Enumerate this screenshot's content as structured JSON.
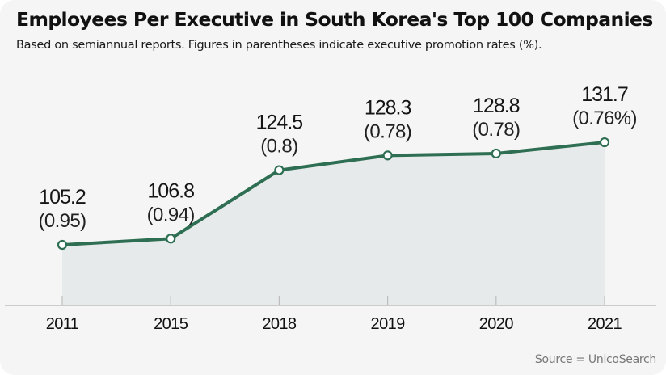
{
  "header": {
    "title": "Employees Per Executive in South Korea's Top 100 Companies",
    "subtitle": "Based on semiannual reports. Figures in parentheses indicate executive promotion rates (%)."
  },
  "footer": {
    "source": "Source = UnicoSearch"
  },
  "colors": {
    "line": "#2e6e52",
    "area": "#e6eaea",
    "background": "#f5f5f5",
    "axis": "#bdbdbd"
  },
  "chart_data": {
    "type": "line",
    "title": "Employees Per Executive in South Korea's Top 100 Companies",
    "subtitle": "Based on semiannual reports. Figures in parentheses indicate executive promotion rates (%).",
    "xlabel": "",
    "ylabel": "",
    "grid": false,
    "legend": "none",
    "categories": [
      "2011",
      "2015",
      "2018",
      "2019",
      "2020",
      "2021"
    ],
    "series": [
      {
        "name": "Employees per executive",
        "values": [
          105.2,
          106.8,
          124.5,
          128.3,
          128.8,
          131.7
        ],
        "labels": [
          "105.2",
          "106.8",
          "124.5",
          "128.3",
          "128.8",
          "131.7"
        ]
      },
      {
        "name": "Executive promotion rate (%)",
        "values": [
          0.95,
          0.94,
          0.8,
          0.78,
          0.78,
          0.76
        ],
        "labels": [
          "(0.95)",
          "(0.94)",
          "(0.8)",
          "(0.78)",
          "(0.78)",
          "(0.76%)"
        ]
      }
    ],
    "area_fill": true,
    "source": "Source = UnicoSearch"
  }
}
